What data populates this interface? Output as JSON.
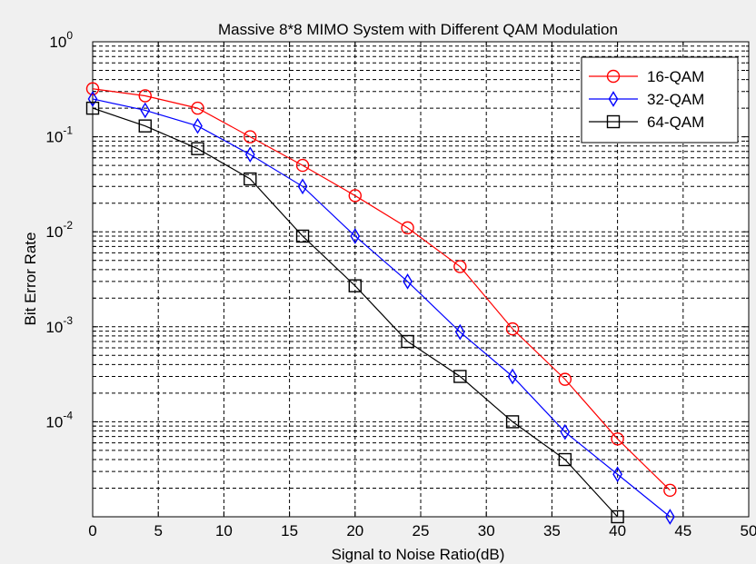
{
  "chart_data": {
    "type": "line",
    "title": "Massive 8*8 MIMO System with Different QAM Modulation",
    "xlabel": "Signal to Noise Ratio(dB)",
    "ylabel": "Bit Error Rate",
    "xlim": [
      0,
      50
    ],
    "ylim": [
      1e-05,
      1
    ],
    "yscale": "log",
    "grid": true,
    "legend_position": "top-right",
    "x_ticks": [
      "0",
      "5",
      "10",
      "15",
      "20",
      "25",
      "30",
      "35",
      "40",
      "45",
      "50"
    ],
    "y_ticks": [
      {
        "base": "10",
        "exp": "0",
        "value": 1
      },
      {
        "base": "10",
        "exp": "-1",
        "value": 0.1
      },
      {
        "base": "10",
        "exp": "-2",
        "value": 0.01
      },
      {
        "base": "10",
        "exp": "-3",
        "value": 0.001
      },
      {
        "base": "10",
        "exp": "-4",
        "value": 0.0001
      }
    ],
    "series": [
      {
        "name": "16-QAM",
        "color": "#ff0000",
        "marker": "circle",
        "x": [
          0,
          4,
          8,
          12,
          16,
          20,
          24,
          28,
          32,
          36,
          40,
          44
        ],
        "y": [
          0.32,
          0.27,
          0.2,
          0.1,
          0.05,
          0.024,
          0.011,
          0.0043,
          0.00095,
          0.00028,
          6.6e-05,
          1.9e-05
        ]
      },
      {
        "name": "32-QAM",
        "color": "#0000ff",
        "marker": "diamond",
        "x": [
          0,
          4,
          8,
          12,
          16,
          20,
          24,
          28,
          32,
          36,
          40,
          44
        ],
        "y": [
          0.25,
          0.19,
          0.13,
          0.065,
          0.03,
          0.009,
          0.003,
          0.00088,
          0.0003,
          7.8e-05,
          2.8e-05,
          1e-05
        ]
      },
      {
        "name": "64-QAM",
        "color": "#000000",
        "marker": "square",
        "x": [
          0,
          4,
          8,
          12,
          16,
          20,
          24,
          28,
          32,
          36,
          40
        ],
        "y": [
          0.2,
          0.13,
          0.075,
          0.036,
          0.009,
          0.0027,
          0.0007,
          0.0003,
          0.0001,
          4e-05,
          1e-05
        ]
      }
    ]
  }
}
